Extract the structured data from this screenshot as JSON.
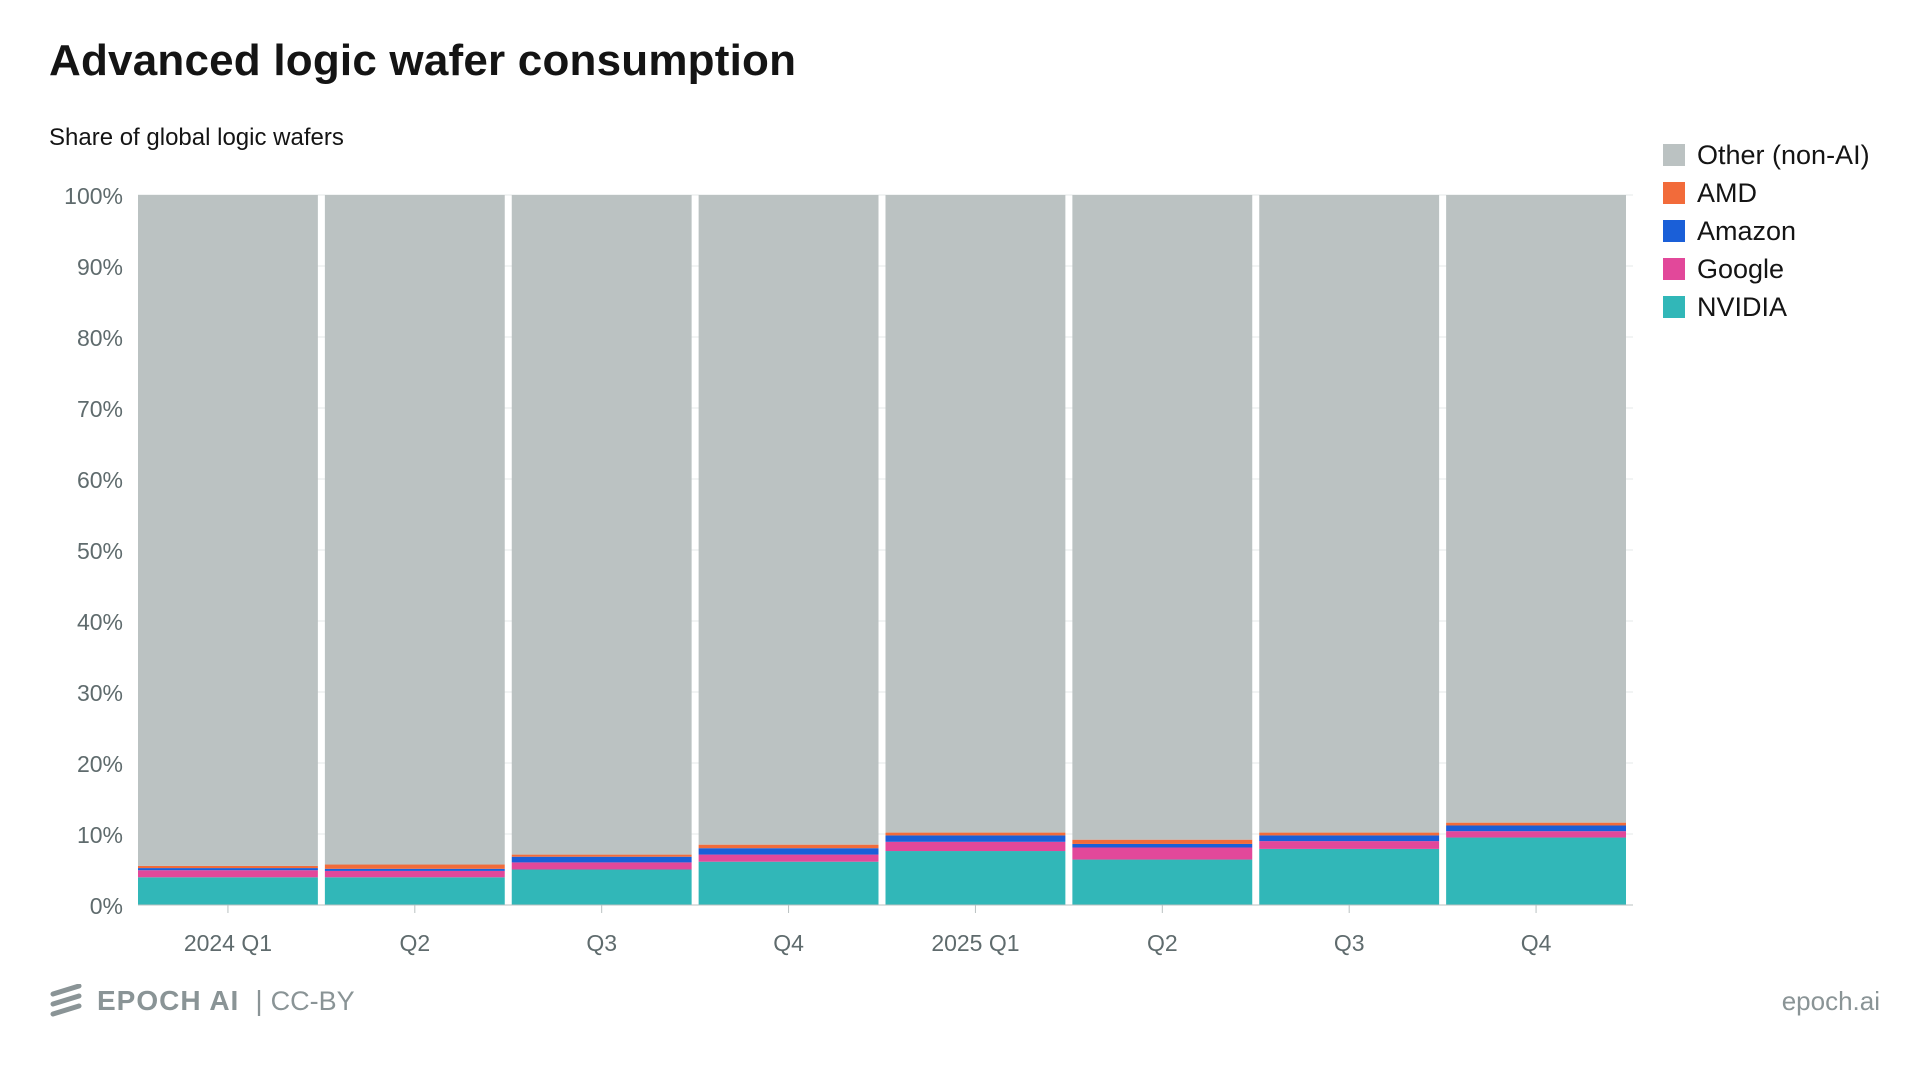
{
  "header": {
    "title": "Advanced logic wafer consumption",
    "subtitle": "Share of global logic wafers"
  },
  "legend": {
    "items": [
      {
        "label": "Other (non-AI)",
        "color": "#bbc2c2"
      },
      {
        "label": "AMD",
        "color": "#f26b3a"
      },
      {
        "label": "Amazon",
        "color": "#1a5fd8"
      },
      {
        "label": "Google",
        "color": "#e2489a"
      },
      {
        "label": "NVIDIA",
        "color": "#31b7b8"
      }
    ]
  },
  "footer": {
    "brand": "EPOCH AI",
    "separator": "|",
    "license": "CC-BY",
    "site": "epoch.ai"
  },
  "chart_data": {
    "type": "bar",
    "stacked": true,
    "categories": [
      "2024 Q1",
      "Q2",
      "Q3",
      "Q4",
      "2025 Q1",
      "Q2",
      "Q3",
      "Q4"
    ],
    "series": [
      {
        "name": "NVIDIA",
        "color": "#31b7b8",
        "values": [
          3.9,
          3.9,
          5.0,
          6.1,
          7.6,
          6.4,
          7.9,
          9.5
        ]
      },
      {
        "name": "Google",
        "color": "#e2489a",
        "values": [
          1.0,
          0.9,
          1.0,
          1.0,
          1.3,
          1.7,
          1.1,
          0.9
        ]
      },
      {
        "name": "Amazon",
        "color": "#1a5fd8",
        "values": [
          0.3,
          0.3,
          0.8,
          0.9,
          0.9,
          0.5,
          0.8,
          0.8
        ]
      },
      {
        "name": "AMD",
        "color": "#f26b3a",
        "values": [
          0.3,
          0.6,
          0.3,
          0.5,
          0.4,
          0.6,
          0.4,
          0.4
        ]
      },
      {
        "name": "Other (non-AI)",
        "color": "#bbc2c2",
        "values": [
          94.5,
          94.3,
          92.9,
          91.5,
          89.8,
          90.8,
          89.8,
          88.4
        ]
      }
    ],
    "xlabel": "",
    "ylabel": "",
    "ylim": [
      0,
      100
    ],
    "y_ticks": [
      0,
      10,
      20,
      30,
      40,
      50,
      60,
      70,
      80,
      90,
      100
    ],
    "y_tick_labels": [
      "0%",
      "10%",
      "20%",
      "30%",
      "40%",
      "50%",
      "60%",
      "70%",
      "80%",
      "90%",
      "100%"
    ],
    "grid": true,
    "legend_position": "top-right"
  }
}
